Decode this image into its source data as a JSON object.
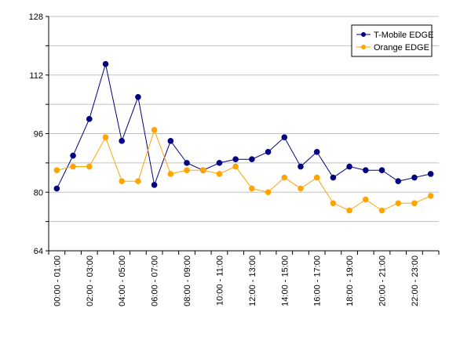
{
  "chart_data": {
    "type": "line",
    "categories": [
      "00:00 - 01:00",
      null,
      "02:00 - 03:00",
      null,
      "04:00 - 05:00",
      null,
      "06:00 - 07:00",
      null,
      "08:00 - 09:00",
      null,
      "10:00 - 11:00",
      null,
      "12:00 - 13:00",
      null,
      "14:00 - 15:00",
      null,
      "16:00 - 17:00",
      null,
      "18:00 - 19:00",
      null,
      "20:00 - 21:00",
      null,
      "22:00 - 23:00",
      null
    ],
    "series": [
      {
        "name": "T-Mobile EDGE",
        "color": "#000080",
        "values": [
          81,
          90,
          100,
          115,
          94,
          106,
          82,
          94,
          88,
          86,
          88,
          89,
          89,
          91,
          95,
          87,
          91,
          84,
          87,
          86,
          86,
          83,
          84,
          85
        ]
      },
      {
        "name": "Orange EDGE",
        "color": "#ffa500",
        "values": [
          86,
          87,
          87,
          95,
          83,
          83,
          97,
          85,
          86,
          86,
          85,
          87,
          81,
          80,
          84,
          81,
          84,
          77,
          75,
          78,
          75,
          77,
          77,
          79
        ]
      }
    ],
    "ylim": [
      64,
      128
    ],
    "yticks": [
      64,
      80,
      96,
      112,
      128
    ],
    "minor_yticks": [
      72,
      88,
      104,
      120
    ],
    "grid": true,
    "legend": "top-right"
  }
}
